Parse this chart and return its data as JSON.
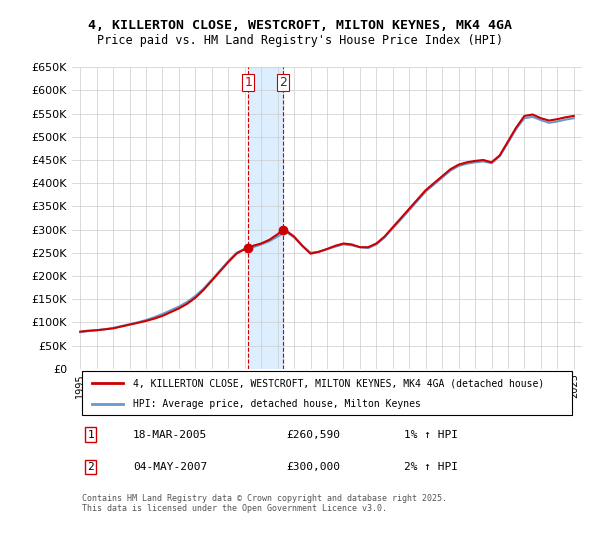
{
  "title_line1": "4, KILLERTON CLOSE, WESTCROFT, MILTON KEYNES, MK4 4GA",
  "title_line2": "Price paid vs. HM Land Registry's House Price Index (HPI)",
  "legend_line1": "4, KILLERTON CLOSE, WESTCROFT, MILTON KEYNES, MK4 4GA (detached house)",
  "legend_line2": "HPI: Average price, detached house, Milton Keynes",
  "footer": "Contains HM Land Registry data © Crown copyright and database right 2025.\nThis data is licensed under the Open Government Licence v3.0.",
  "transaction1_label": "1",
  "transaction1_date": "18-MAR-2005",
  "transaction1_price": "£260,590",
  "transaction1_hpi": "1% ↑ HPI",
  "transaction2_label": "2",
  "transaction2_date": "04-MAY-2007",
  "transaction2_price": "£300,000",
  "transaction2_hpi": "2% ↑ HPI",
  "shade_x1": 2005.2,
  "shade_x2": 2007.35,
  "ylim": [
    0,
    650000
  ],
  "xlim_start": 1994.5,
  "xlim_end": 2025.5,
  "yticks": [
    0,
    50000,
    100000,
    150000,
    200000,
    250000,
    300000,
    350000,
    400000,
    450000,
    500000,
    550000,
    600000,
    650000
  ],
  "ytick_labels": [
    "£0",
    "£50K",
    "£100K",
    "£150K",
    "£200K",
    "£250K",
    "£300K",
    "£350K",
    "£400K",
    "£450K",
    "£500K",
    "£550K",
    "£600K",
    "£650K"
  ],
  "xticks": [
    1995,
    1996,
    1997,
    1998,
    1999,
    2000,
    2001,
    2002,
    2003,
    2004,
    2005,
    2006,
    2007,
    2008,
    2009,
    2010,
    2011,
    2012,
    2013,
    2014,
    2015,
    2016,
    2017,
    2018,
    2019,
    2020,
    2021,
    2022,
    2023,
    2024,
    2025
  ],
  "property_color": "#cc0000",
  "hpi_color": "#6699cc",
  "shade_color": "#ddeeff",
  "background_color": "#ffffff",
  "grid_color": "#cccccc",
  "marker1_x": 2005.21,
  "marker1_y": 260590,
  "marker2_x": 2007.34,
  "marker2_y": 300000,
  "property_data_x": [
    1995.0,
    1995.5,
    1996.0,
    1996.5,
    1997.0,
    1997.5,
    1998.0,
    1998.5,
    1999.0,
    1999.5,
    2000.0,
    2000.5,
    2001.0,
    2001.5,
    2002.0,
    2002.5,
    2003.0,
    2003.5,
    2004.0,
    2004.5,
    2005.0,
    2005.21,
    2005.5,
    2006.0,
    2006.5,
    2007.0,
    2007.34,
    2007.5,
    2008.0,
    2008.5,
    2009.0,
    2009.5,
    2010.0,
    2010.5,
    2011.0,
    2011.5,
    2012.0,
    2012.5,
    2013.0,
    2013.5,
    2014.0,
    2014.5,
    2015.0,
    2015.5,
    2016.0,
    2016.5,
    2017.0,
    2017.5,
    2018.0,
    2018.5,
    2019.0,
    2019.5,
    2020.0,
    2020.5,
    2021.0,
    2021.5,
    2022.0,
    2022.5,
    2023.0,
    2023.5,
    2024.0,
    2024.5,
    2025.0
  ],
  "property_data_y": [
    80000,
    82000,
    83000,
    85000,
    87000,
    91000,
    95000,
    99000,
    103000,
    108000,
    114000,
    122000,
    130000,
    140000,
    153000,
    170000,
    190000,
    210000,
    230000,
    248000,
    258000,
    260590,
    265000,
    270000,
    278000,
    290000,
    300000,
    298000,
    285000,
    265000,
    248000,
    252000,
    258000,
    265000,
    270000,
    268000,
    262000,
    262000,
    270000,
    285000,
    305000,
    325000,
    345000,
    365000,
    385000,
    400000,
    415000,
    430000,
    440000,
    445000,
    448000,
    450000,
    445000,
    460000,
    490000,
    520000,
    545000,
    548000,
    540000,
    535000,
    538000,
    542000,
    545000
  ],
  "hpi_data_x": [
    1995.0,
    1995.5,
    1996.0,
    1996.5,
    1997.0,
    1997.5,
    1998.0,
    1998.5,
    1999.0,
    1999.5,
    2000.0,
    2000.5,
    2001.0,
    2001.5,
    2002.0,
    2002.5,
    2003.0,
    2003.5,
    2004.0,
    2004.5,
    2005.0,
    2005.5,
    2006.0,
    2006.5,
    2007.0,
    2007.5,
    2008.0,
    2008.5,
    2009.0,
    2009.5,
    2010.0,
    2010.5,
    2011.0,
    2011.5,
    2012.0,
    2012.5,
    2013.0,
    2013.5,
    2014.0,
    2014.5,
    2015.0,
    2015.5,
    2016.0,
    2016.5,
    2017.0,
    2017.5,
    2018.0,
    2018.5,
    2019.0,
    2019.5,
    2020.0,
    2020.5,
    2021.0,
    2021.5,
    2022.0,
    2022.5,
    2023.0,
    2023.5,
    2024.0,
    2024.5,
    2025.0
  ],
  "hpi_data_y": [
    79000,
    81000,
    83000,
    85000,
    88000,
    92000,
    96000,
    100000,
    105000,
    111000,
    118000,
    126000,
    134000,
    144000,
    157000,
    173000,
    192000,
    212000,
    232000,
    250000,
    258000,
    262000,
    268000,
    275000,
    285000,
    295000,
    283000,
    265000,
    250000,
    252000,
    258000,
    263000,
    268000,
    266000,
    262000,
    260000,
    268000,
    283000,
    303000,
    322000,
    342000,
    362000,
    382000,
    397000,
    412000,
    427000,
    437000,
    442000,
    445000,
    447000,
    443000,
    458000,
    487000,
    517000,
    540000,
    543000,
    536000,
    530000,
    533000,
    537000,
    540000
  ]
}
